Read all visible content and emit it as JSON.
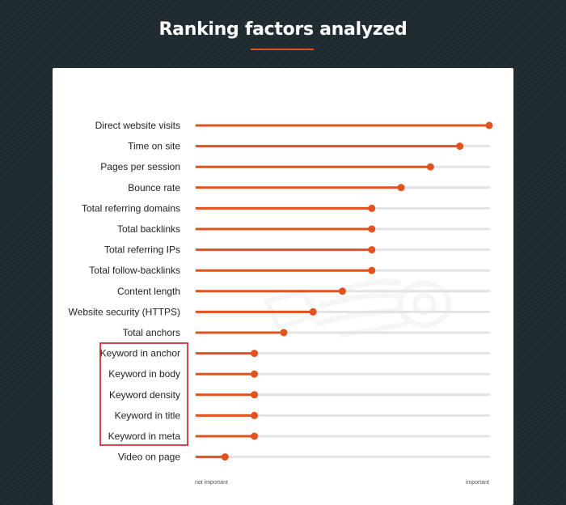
{
  "header": {
    "title": "Ranking factors analyzed"
  },
  "colors": {
    "accent": "#e0531c",
    "track": "#e3e3e3",
    "highlight_box": "#d0161f"
  },
  "chart_data": {
    "type": "bar",
    "orientation": "horizontal",
    "style": "lollipop",
    "categories": [
      "Direct website visits",
      "Time on site",
      "Pages per session",
      "Bounce rate",
      "Total referring domains",
      "Total backlinks",
      "Total referring IPs",
      "Total follow-backlinks",
      "Content length",
      "Website security (HTTPS)",
      "Total anchors",
      "Keyword in anchor",
      "Keyword in body",
      "Keyword density",
      "Keyword in title",
      "Keyword in meta",
      "Video on page"
    ],
    "values": [
      1.0,
      0.9,
      0.8,
      0.7,
      0.6,
      0.6,
      0.6,
      0.6,
      0.5,
      0.4,
      0.3,
      0.2,
      0.2,
      0.2,
      0.2,
      0.2,
      0.1
    ],
    "xlim": [
      0,
      1
    ],
    "axis": {
      "min_label": "not important",
      "max_label": "important"
    },
    "highlighted_categories": [
      "Keyword in anchor",
      "Keyword in body",
      "Keyword density",
      "Keyword in title",
      "Keyword in meta"
    ],
    "grid": false
  }
}
